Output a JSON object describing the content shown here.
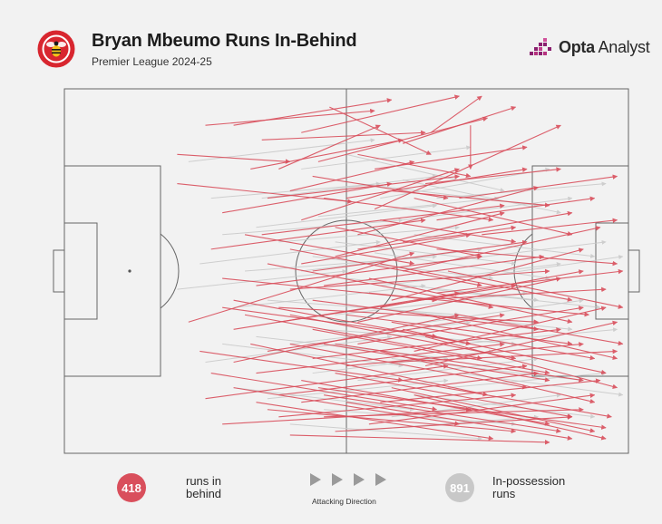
{
  "header": {
    "title": "Bryan Mbeumo Runs In-Behind",
    "subtitle": "Premier League 2024-25",
    "brand_word1": "Opta",
    "brand_word2": "Analyst",
    "club_badge_icon": "brentford-bee-badge"
  },
  "colors": {
    "in_behind": "#d94f5c",
    "in_possession": "#c8c8c8",
    "pitch_lines": "#666666",
    "background": "#f2f2f2",
    "badge_red": "#d8262f",
    "brand_purple": "#8a1f6f"
  },
  "legend": {
    "in_behind_count": "418",
    "in_behind_label_line1": "runs in",
    "in_behind_label_line2": "behind",
    "in_possession_count": "891",
    "in_possession_label_line1": "In-possession",
    "in_possession_label_line2": "runs",
    "direction_label": "Attacking Direction",
    "direction_icon": "play-arrows-icon"
  },
  "chart_data": {
    "type": "scatter",
    "description_of_marks": "arrows from run start to run end on a football pitch, pitch coordinates 0-100 in attacking direction (x) and 0-100 across (y, 0 = top touchline)",
    "xlim": [
      0,
      100
    ],
    "ylim": [
      0,
      100
    ],
    "series": [
      {
        "name": "runs in behind",
        "total": 418,
        "runs": [
          [
            55,
            33,
            88,
            10
          ],
          [
            20,
            26,
            51,
            31
          ],
          [
            48,
            70,
            92,
            80
          ],
          [
            40,
            55,
            86,
            50
          ],
          [
            22,
            64,
            62,
            45
          ],
          [
            30,
            75,
            70,
            62
          ],
          [
            45,
            82,
            96,
            93
          ],
          [
            60,
            50,
            95,
            38
          ],
          [
            35,
            40,
            78,
            32
          ],
          [
            50,
            62,
            90,
            70
          ],
          [
            25,
            85,
            68,
            76
          ],
          [
            38,
            60,
            84,
            64
          ],
          [
            58,
            75,
            98,
            72
          ],
          [
            42,
            48,
            72,
            40
          ],
          [
            28,
            52,
            66,
            58
          ],
          [
            46,
            90,
            92,
            88
          ],
          [
            52,
            40,
            84,
            27
          ],
          [
            33,
            70,
            75,
            84
          ],
          [
            62,
            58,
            96,
            55
          ],
          [
            44,
            66,
            86,
            78
          ],
          [
            36,
            88,
            80,
            94
          ],
          [
            54,
            56,
            93,
            62
          ],
          [
            26,
            44,
            64,
            36
          ],
          [
            48,
            78,
            90,
            90
          ],
          [
            40,
            95,
            86,
            97
          ],
          [
            64,
            68,
            98,
            82
          ],
          [
            30,
            58,
            72,
            70
          ],
          [
            56,
            86,
            95,
            80
          ],
          [
            42,
            36,
            70,
            22
          ],
          [
            68,
            50,
            99,
            60
          ],
          [
            50,
            30,
            82,
            22
          ],
          [
            34,
            78,
            78,
            70
          ],
          [
            58,
            64,
            94,
            74
          ],
          [
            24,
            72,
            60,
            80
          ],
          [
            46,
            54,
            85,
            46
          ],
          [
            60,
            80,
            97,
            90
          ],
          [
            38,
            84,
            82,
            76
          ],
          [
            52,
            70,
            92,
            60
          ],
          [
            30,
            66,
            70,
            56
          ],
          [
            66,
            44,
            98,
            48
          ],
          [
            44,
            74,
            88,
            66
          ],
          [
            28,
            92,
            72,
            88
          ],
          [
            56,
            48,
            90,
            58
          ],
          [
            40,
            62,
            80,
            74
          ],
          [
            62,
            84,
            96,
            96
          ],
          [
            48,
            46,
            78,
            34
          ],
          [
            34,
            54,
            74,
            46
          ],
          [
            54,
            92,
            94,
            84
          ],
          [
            42,
            80,
            86,
            92
          ],
          [
            70,
            62,
            99,
            70
          ],
          [
            36,
            48,
            76,
            60
          ],
          [
            58,
            58,
            92,
            44
          ],
          [
            26,
            78,
            66,
            88
          ],
          [
            50,
            86,
            90,
            96
          ],
          [
            44,
            58,
            84,
            66
          ],
          [
            64,
            76,
            98,
            64
          ],
          [
            32,
            62,
            74,
            74
          ],
          [
            56,
            72,
            94,
            86
          ],
          [
            40,
            44,
            74,
            54
          ],
          [
            60,
            66,
            96,
            78
          ],
          [
            38,
            90,
            80,
            84
          ],
          [
            52,
            64,
            88,
            52
          ],
          [
            30,
            82,
            70,
            92
          ],
          [
            66,
            56,
            99,
            50
          ],
          [
            46,
            70,
            86,
            80
          ],
          [
            42,
            86,
            84,
            78
          ],
          [
            54,
            52,
            90,
            64
          ],
          [
            36,
            72,
            78,
            62
          ],
          [
            62,
            72,
            96,
            60
          ],
          [
            48,
            94,
            90,
            90
          ],
          [
            28,
            60,
            66,
            68
          ],
          [
            58,
            82,
            94,
            94
          ],
          [
            44,
            50,
            82,
            42
          ],
          [
            50,
            76,
            92,
            70
          ],
          [
            34,
            86,
            76,
            96
          ],
          [
            64,
            62,
            98,
            74
          ],
          [
            40,
            70,
            82,
            82
          ],
          [
            56,
            60,
            92,
            50
          ],
          [
            46,
            84,
            88,
            94
          ],
          [
            38,
            64,
            80,
            54
          ],
          [
            30,
            10,
            58,
            3
          ],
          [
            35,
            14,
            64,
            12
          ],
          [
            45,
            20,
            75,
            8
          ],
          [
            20,
            18,
            40,
            20
          ],
          [
            55,
            22,
            82,
            16
          ],
          [
            42,
            12,
            70,
            2
          ],
          [
            60,
            15,
            80,
            5
          ],
          [
            25,
            10,
            55,
            6
          ],
          [
            65,
            12,
            74,
            2
          ],
          [
            47,
            5,
            65,
            18
          ],
          [
            33,
            22,
            60,
            14
          ],
          [
            70,
            30,
            98,
            24
          ],
          [
            58,
            28,
            86,
            32
          ],
          [
            36,
            30,
            70,
            24
          ],
          [
            72,
            10,
            72,
            22
          ],
          [
            40,
            28,
            62,
            20
          ],
          [
            52,
            18,
            72,
            24
          ],
          [
            62,
            30,
            90,
            40
          ],
          [
            28,
            34,
            58,
            26
          ],
          [
            66,
            36,
            94,
            30
          ],
          [
            48,
            38,
            74,
            46
          ],
          [
            44,
            24,
            68,
            30
          ],
          [
            56,
            36,
            80,
            42
          ],
          [
            74,
            40,
            98,
            36
          ],
          [
            38,
            22,
            56,
            10
          ],
          [
            64,
            26,
            88,
            22
          ],
          [
            52,
            44,
            80,
            38
          ],
          [
            32,
            40,
            62,
            48
          ],
          [
            60,
            42,
            90,
            34
          ],
          [
            46,
            30,
            76,
            36
          ]
        ]
      },
      {
        "name": "In-possession runs",
        "total": 891,
        "runs": [
          [
            22,
            20,
            55,
            14
          ],
          [
            35,
            30,
            66,
            24
          ],
          [
            50,
            18,
            78,
            28
          ],
          [
            28,
            40,
            60,
            36
          ],
          [
            60,
            25,
            88,
            34
          ],
          [
            42,
            50,
            74,
            44
          ],
          [
            55,
            45,
            86,
            52
          ],
          [
            30,
            60,
            64,
            54
          ],
          [
            65,
            55,
            95,
            60
          ],
          [
            40,
            70,
            72,
            64
          ],
          [
            52,
            80,
            84,
            74
          ],
          [
            25,
            75,
            58,
            68
          ],
          [
            48,
            62,
            82,
            56
          ],
          [
            70,
            70,
            98,
            66
          ],
          [
            36,
            85,
            68,
            80
          ],
          [
            58,
            90,
            88,
            84
          ],
          [
            45,
            35,
            77,
            30
          ],
          [
            62,
            40,
            94,
            46
          ],
          [
            32,
            50,
            66,
            46
          ],
          [
            54,
            60,
            90,
            66
          ],
          [
            20,
            55,
            50,
            50
          ],
          [
            44,
            78,
            76,
            72
          ],
          [
            68,
            82,
            96,
            78
          ],
          [
            38,
            42,
            70,
            38
          ],
          [
            56,
            30,
            86,
            22
          ],
          [
            26,
            30,
            56,
            26
          ],
          [
            46,
            88,
            80,
            92
          ],
          [
            60,
            65,
            92,
            58
          ],
          [
            34,
            68,
            68,
            74
          ],
          [
            50,
            52,
            84,
            58
          ],
          [
            64,
            48,
            96,
            42
          ],
          [
            42,
            22,
            72,
            16
          ],
          [
            30,
            82,
            62,
            88
          ],
          [
            58,
            74,
            92,
            80
          ],
          [
            48,
            42,
            80,
            48
          ],
          [
            72,
            52,
            99,
            46
          ],
          [
            36,
            58,
            70,
            62
          ],
          [
            52,
            26,
            84,
            32
          ],
          [
            40,
            92,
            74,
            96
          ],
          [
            66,
            30,
            96,
            26
          ],
          [
            24,
            48,
            56,
            42
          ],
          [
            46,
            66,
            80,
            70
          ],
          [
            62,
            84,
            94,
            90
          ],
          [
            34,
            38,
            66,
            32
          ],
          [
            56,
            54,
            88,
            48
          ],
          [
            44,
            46,
            76,
            52
          ],
          [
            70,
            78,
            99,
            84
          ],
          [
            28,
            70,
            60,
            76
          ],
          [
            50,
            94,
            84,
            90
          ],
          [
            60,
            36,
            90,
            30
          ]
        ]
      }
    ]
  }
}
